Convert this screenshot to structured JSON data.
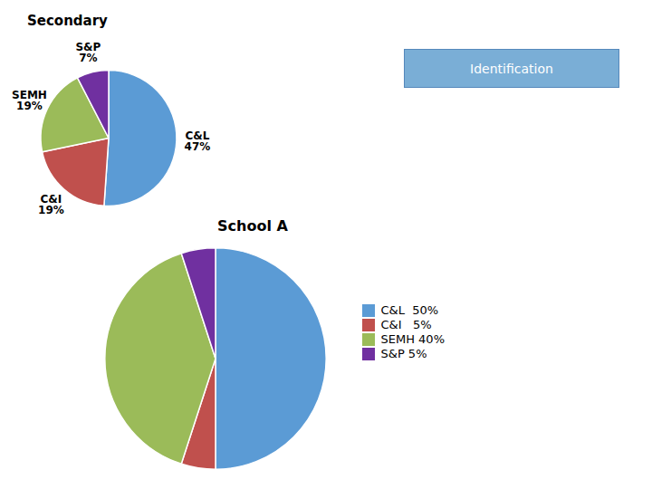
{
  "chart_data": [
    {
      "type": "pie",
      "title": "Secondary",
      "categories": [
        "C&L",
        "C&I",
        "SEMH",
        "S&P"
      ],
      "values": [
        47,
        19,
        19,
        7
      ],
      "value_labels": [
        "47%",
        "19%",
        "19%",
        "7%"
      ],
      "data_labels": true,
      "colors": [
        "#5B9BD5",
        "#C0504D",
        "#9BBB59",
        "#7030A0"
      ],
      "annotations": [
        "Identification"
      ]
    },
    {
      "type": "pie",
      "title": "School A",
      "categories": [
        "C&L  50%",
        "C&I   5%",
        "SEMH 40%",
        "S&P 5%"
      ],
      "values": [
        50,
        5,
        40,
        5
      ],
      "colors": [
        "#5B9BD5",
        "#C0504D",
        "#9BBB59",
        "#7030A0"
      ],
      "legend": "right"
    }
  ]
}
